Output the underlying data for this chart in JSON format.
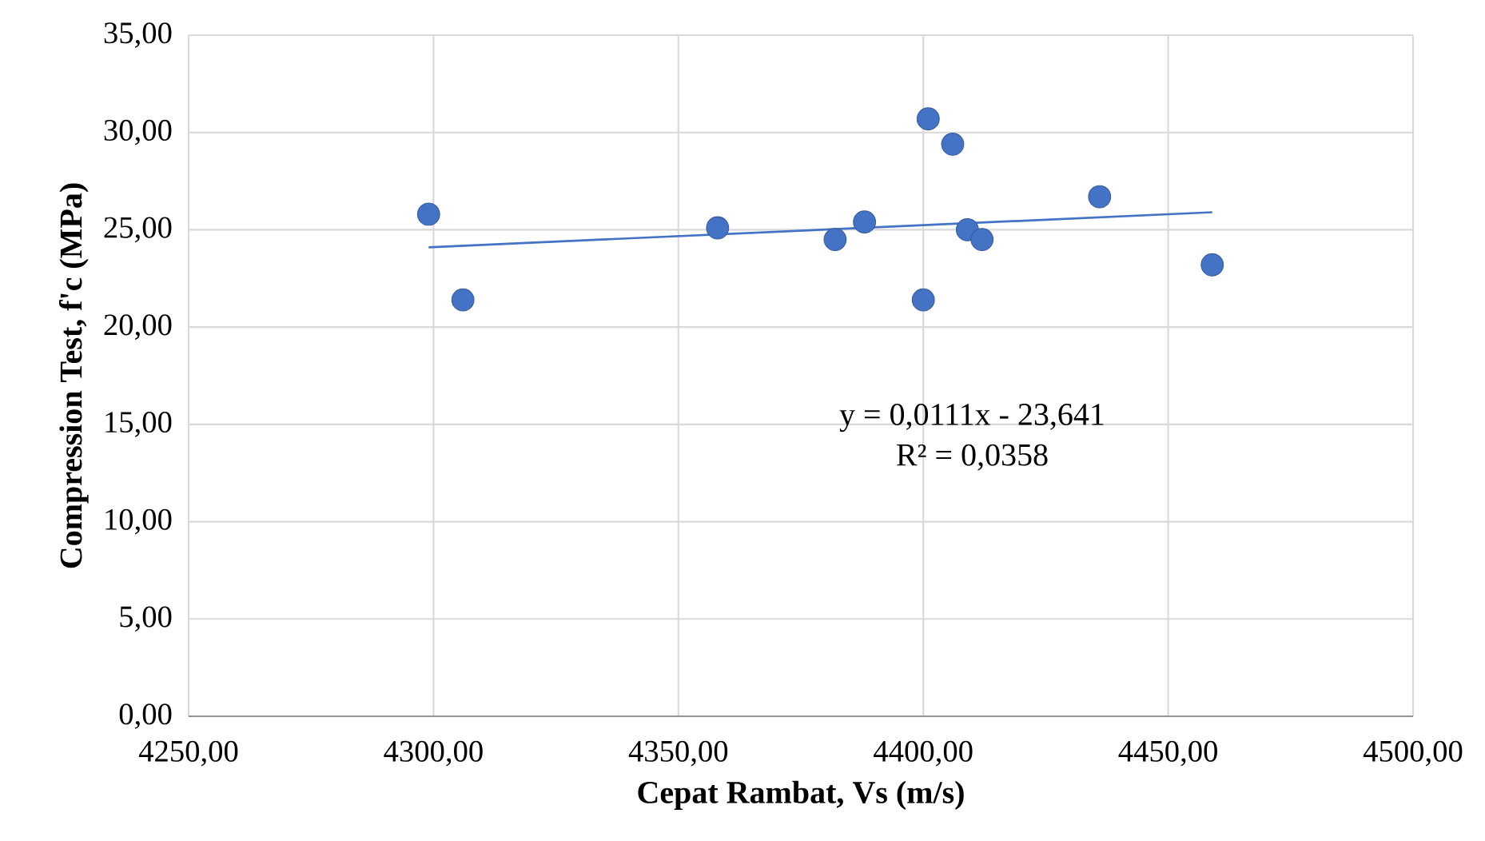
{
  "chart_data": {
    "type": "scatter",
    "xlabel": "Cepat Rambat, Vs (m/s)",
    "ylabel": "Compression Test, f'c (MPa)",
    "series": [
      {
        "color": "#4472c4",
        "marker": "circle",
        "x": [
          4299,
          4306,
          4358,
          4382,
          4388,
          4400,
          4401,
          4406,
          4409,
          4412,
          4436,
          4459
        ],
        "values": [
          25.8,
          21.4,
          25.1,
          24.5,
          25.4,
          21.4,
          30.7,
          29.4,
          25.0,
          24.5,
          26.7,
          23.2
        ]
      },
      {
        "type": "line",
        "color": "#4472c4",
        "x": [
          4299,
          4459
        ],
        "values": [
          24.1,
          25.9
        ]
      }
    ],
    "annotations": [
      "y = 0,0111x - 23,641",
      "R² = 0,0358"
    ],
    "xlim": [
      4250,
      4500
    ],
    "ylim": [
      0,
      35
    ],
    "xticks": [
      {
        "value": 4250,
        "label": "4250,00"
      },
      {
        "value": 4300,
        "label": "4300,00"
      },
      {
        "value": 4350,
        "label": "4350,00"
      },
      {
        "value": 4400,
        "label": "4400,00"
      },
      {
        "value": 4450,
        "label": "4450,00"
      },
      {
        "value": 4500,
        "label": "4500,00"
      }
    ],
    "yticks": [
      {
        "value": 0,
        "label": "0,00"
      },
      {
        "value": 5,
        "label": "5,00"
      },
      {
        "value": 10,
        "label": "10,00"
      },
      {
        "value": 15,
        "label": "15,00"
      },
      {
        "value": 20,
        "label": "20,00"
      },
      {
        "value": 25,
        "label": "25,00"
      },
      {
        "value": 30,
        "label": "30,00"
      },
      {
        "value": 35,
        "label": "35,00"
      }
    ],
    "grid": true
  }
}
